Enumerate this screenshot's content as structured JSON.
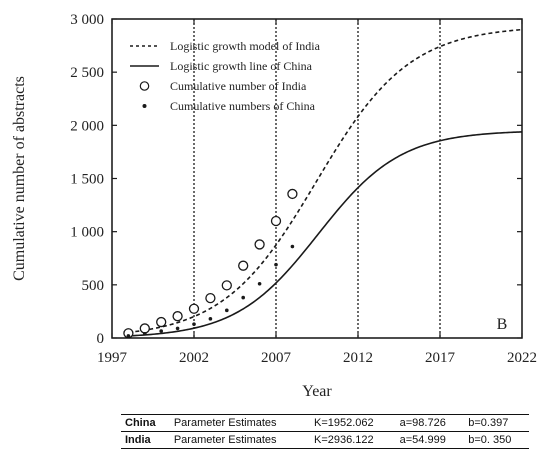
{
  "chart_data": {
    "type": "line",
    "xlabel": "Year",
    "ylabel": "Cumulative number of abstracts",
    "xlim": [
      1997,
      2022
    ],
    "ylim": [
      0,
      3000
    ],
    "x_ticks": [
      "1997",
      "2002",
      "2007",
      "2012",
      "2017",
      "2022"
    ],
    "y_ticks": [
      "0",
      "500",
      "1 000",
      "1 500",
      "2 000",
      "2 500",
      "3 000"
    ],
    "vertical_reference_lines": [
      2002,
      2007,
      2012,
      2017
    ],
    "panel_label": "B",
    "legend": {
      "placement": "top-left",
      "entries": [
        "Logistic growth model of India",
        "Logistic growth line of China",
        "Cumulative number of India",
        "Cumulative numbers of China"
      ]
    },
    "curves": [
      {
        "name": "Logistic growth model of India",
        "style": "dashed",
        "K": 2936.122,
        "a": 54.999,
        "b": 0.35
      },
      {
        "name": "Logistic growth line of China",
        "style": "solid",
        "K": 1952.062,
        "a": 98.726,
        "b": 0.397
      }
    ],
    "points": [
      {
        "name": "Cumulative number of India",
        "marker": "open-circle",
        "x": [
          1998,
          1999,
          2000,
          2001,
          2002,
          2003,
          2004,
          2005,
          2006,
          2007,
          2008
        ],
        "y": [
          45,
          90,
          150,
          205,
          275,
          375,
          495,
          680,
          880,
          1100,
          1355
        ]
      },
      {
        "name": "Cumulative numbers of China",
        "marker": "dot",
        "x": [
          1998,
          1999,
          2000,
          2001,
          2002,
          2003,
          2004,
          2005,
          2006,
          2007,
          2008
        ],
        "y": [
          20,
          40,
          65,
          90,
          130,
          180,
          260,
          380,
          510,
          690,
          860
        ]
      }
    ],
    "parameter_table": {
      "rows": [
        {
          "country": "China",
          "label": "Parameter Estimates",
          "K": "K=1952.062",
          "a": "a=98.726",
          "b": "b=0.397"
        },
        {
          "country": "India",
          "label": "Parameter Estimates",
          "K": "K=2936.122",
          "a": "a=54.999",
          "b": "b=0. 350"
        }
      ]
    }
  },
  "colors": {
    "line": "#1a1a1a",
    "axis": "#111111"
  }
}
